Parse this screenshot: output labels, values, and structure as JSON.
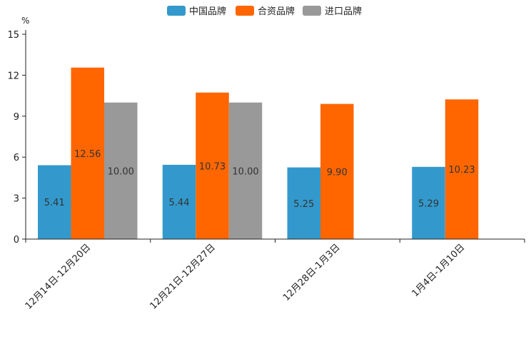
{
  "chart_data": {
    "type": "bar",
    "unit_label": "%",
    "categories": [
      "12月14日-12月20日",
      "12月21日-12月27日",
      "12月28日-1月3日",
      "1月4日-1月10日"
    ],
    "series": [
      {
        "name": "中国品牌",
        "color": "#3399cc",
        "values": [
          5.41,
          5.44,
          5.25,
          5.29
        ],
        "labels": [
          "5.41",
          "5.44",
          "5.25",
          "5.29"
        ]
      },
      {
        "name": "合资品牌",
        "color": "#ff6600",
        "values": [
          12.56,
          10.73,
          9.9,
          10.23
        ],
        "labels": [
          "12.56",
          "10.73",
          "9.90",
          "10.23"
        ]
      },
      {
        "name": "进口品牌",
        "color": "#999999",
        "values": [
          10.0,
          10.0,
          null,
          null
        ],
        "labels": [
          "10.00",
          "10.00",
          "",
          ""
        ]
      }
    ],
    "ylim": [
      0,
      15
    ],
    "yticks": [
      0,
      3,
      6,
      9,
      12,
      15
    ],
    "legend_position": "top-center",
    "grid": false
  }
}
